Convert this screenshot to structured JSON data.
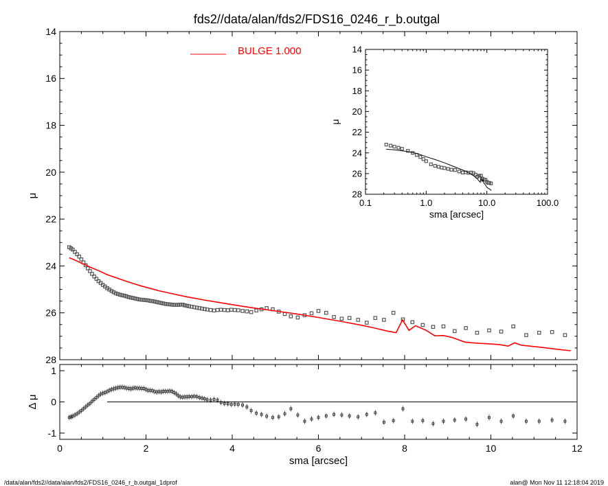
{
  "title": "fds2//data/alan/fds2/FDS16_0246_r_b.outgal",
  "footer": {
    "left": "/data/alan/fds2//data/alan/fds2/FDS16_0246_r_b.outgal_1dprof",
    "right": "alan@  Mon Nov 11 12:18:04 2019"
  },
  "colors": {
    "model": "#ff0000",
    "data": "#555555",
    "axis": "#000000"
  },
  "chart_data": [
    {
      "id": "main",
      "type": "scatter",
      "xlabel": "",
      "ylabel": "μ",
      "xlim": [
        0,
        12
      ],
      "ylim": [
        28,
        14
      ],
      "yreverse": true,
      "yticks": [
        14,
        16,
        18,
        20,
        22,
        24,
        26,
        28
      ],
      "ytick_labels": [
        "14",
        "16",
        "18",
        "20",
        "22",
        "24",
        "26",
        "28"
      ],
      "legend": {
        "entry": "BULGE  1.000",
        "placement": "top"
      },
      "series": [
        {
          "kind": "data-points",
          "x": [
            0.22,
            0.26,
            0.3,
            0.35,
            0.4,
            0.45,
            0.5,
            0.55,
            0.6,
            0.65,
            0.7,
            0.75,
            0.8,
            0.85,
            0.9,
            0.95,
            1.0,
            1.05,
            1.1,
            1.15,
            1.2,
            1.25,
            1.3,
            1.35,
            1.4,
            1.45,
            1.5,
            1.55,
            1.6,
            1.65,
            1.7,
            1.75,
            1.8,
            1.85,
            1.9,
            1.95,
            2.0,
            2.05,
            2.1,
            2.15,
            2.2,
            2.25,
            2.3,
            2.35,
            2.4,
            2.45,
            2.5,
            2.55,
            2.6,
            2.65,
            2.7,
            2.75,
            2.8,
            2.85,
            2.9,
            2.95,
            3.0,
            3.06,
            3.12,
            3.18,
            3.24,
            3.3,
            3.36,
            3.42,
            3.5,
            3.58,
            3.66,
            3.74,
            3.82,
            3.9,
            3.98,
            4.06,
            4.14,
            4.24,
            4.34,
            4.44,
            4.56,
            4.68,
            4.8,
            4.94,
            5.08,
            5.22,
            5.36,
            5.52,
            5.68,
            5.84,
            6.0,
            6.18,
            6.36,
            6.54,
            6.72,
            6.92,
            7.12,
            7.32,
            7.52,
            7.74,
            7.96,
            8.18,
            8.42,
            8.66,
            8.9,
            9.16,
            9.42,
            9.68,
            9.96,
            10.24,
            10.52,
            10.82,
            11.12,
            11.42,
            11.72
          ],
          "y": [
            23.2,
            23.25,
            23.3,
            23.4,
            23.5,
            23.6,
            23.72,
            23.85,
            23.97,
            24.1,
            24.22,
            24.34,
            24.45,
            24.55,
            24.65,
            24.73,
            24.81,
            24.88,
            24.95,
            25.01,
            25.07,
            25.12,
            25.17,
            25.2,
            25.23,
            25.25,
            25.27,
            25.3,
            25.33,
            25.35,
            25.37,
            25.39,
            25.41,
            25.43,
            25.44,
            25.45,
            25.46,
            25.47,
            25.49,
            25.5,
            25.52,
            25.54,
            25.56,
            25.58,
            25.6,
            25.62,
            25.63,
            25.64,
            25.65,
            25.66,
            25.66,
            25.66,
            25.65,
            25.65,
            25.68,
            25.7,
            25.72,
            25.74,
            25.76,
            25.78,
            25.8,
            25.82,
            25.84,
            25.86,
            25.88,
            25.9,
            25.88,
            25.87,
            25.88,
            25.89,
            25.87,
            25.88,
            25.89,
            25.92,
            25.94,
            25.97,
            25.9,
            25.85,
            25.8,
            25.85,
            25.95,
            26.05,
            26.15,
            26.2,
            26.1,
            26.02,
            25.92,
            26.0,
            26.18,
            26.25,
            26.22,
            26.3,
            26.42,
            26.22,
            26.3,
            26.0,
            26.28,
            26.4,
            26.52,
            26.6,
            26.58,
            26.78,
            26.65,
            26.85,
            26.75,
            26.8,
            26.58,
            26.95,
            26.85,
            26.82,
            26.95
          ],
          "marker": "square"
        },
        {
          "kind": "model",
          "name": "BULGE  1.000",
          "x": [
            0.22,
            0.35,
            0.5,
            0.7,
            0.9,
            1.1,
            1.3,
            1.5,
            1.7,
            1.9,
            2.1,
            2.3,
            2.5,
            2.7,
            2.9,
            3.1,
            3.4,
            3.7,
            4.0,
            4.3,
            4.6,
            5.0,
            5.5,
            6.0,
            6.5,
            7.0,
            7.3,
            7.6,
            7.8,
            7.95,
            8.1,
            8.25,
            8.5,
            8.7,
            8.9,
            9.1,
            9.4,
            9.7,
            10.0,
            10.2,
            10.4,
            10.55,
            10.7,
            10.9,
            11.2,
            11.5,
            11.85
          ],
          "y": [
            23.65,
            23.75,
            23.88,
            24.05,
            24.2,
            24.37,
            24.5,
            24.63,
            24.75,
            24.86,
            24.96,
            25.06,
            25.14,
            25.22,
            25.3,
            25.37,
            25.47,
            25.56,
            25.65,
            25.74,
            25.82,
            25.92,
            26.05,
            26.2,
            26.36,
            26.53,
            26.65,
            26.78,
            26.85,
            26.3,
            26.75,
            26.55,
            26.75,
            26.98,
            26.97,
            27.05,
            27.25,
            27.3,
            27.33,
            27.36,
            27.42,
            27.28,
            27.38,
            27.42,
            27.48,
            27.55,
            27.62
          ]
        }
      ]
    },
    {
      "id": "residual",
      "type": "scatter",
      "xlabel": "sma [arcsec]",
      "ylabel": "Δ μ",
      "xlim": [
        0,
        12
      ],
      "ylim": [
        -1.2,
        1.2
      ],
      "xticks": [
        0,
        2,
        4,
        6,
        8,
        10,
        12
      ],
      "xtick_labels": [
        "0",
        "2",
        "4",
        "6",
        "8",
        "10",
        "12"
      ],
      "yticks": [
        1,
        0,
        -1
      ],
      "ytick_labels": [
        "1",
        "0",
        "-1"
      ],
      "zero_line_from": 1.1,
      "series": [
        {
          "kind": "residual",
          "x": [
            0.22,
            0.26,
            0.3,
            0.35,
            0.4,
            0.45,
            0.5,
            0.55,
            0.6,
            0.65,
            0.7,
            0.75,
            0.8,
            0.85,
            0.9,
            0.95,
            1.0,
            1.05,
            1.1,
            1.15,
            1.2,
            1.25,
            1.3,
            1.35,
            1.4,
            1.45,
            1.5,
            1.55,
            1.6,
            1.65,
            1.7,
            1.75,
            1.8,
            1.85,
            1.9,
            1.95,
            2.0,
            2.05,
            2.1,
            2.15,
            2.2,
            2.25,
            2.3,
            2.35,
            2.4,
            2.45,
            2.5,
            2.55,
            2.6,
            2.65,
            2.7,
            2.75,
            2.8,
            2.85,
            2.9,
            2.95,
            3.0,
            3.06,
            3.12,
            3.18,
            3.24,
            3.3,
            3.36,
            3.42,
            3.5,
            3.58,
            3.66,
            3.74,
            3.82,
            3.9,
            3.98,
            4.06,
            4.14,
            4.24,
            4.34,
            4.44,
            4.56,
            4.68,
            4.8,
            4.94,
            5.08,
            5.22,
            5.36,
            5.52,
            5.68,
            5.84,
            6.0,
            6.18,
            6.36,
            6.54,
            6.72,
            6.92,
            7.12,
            7.32,
            7.52,
            7.74,
            7.96,
            8.18,
            8.42,
            8.66,
            8.9,
            9.16,
            9.42,
            9.68,
            9.96,
            10.24,
            10.52,
            10.82,
            11.12,
            11.42,
            11.72
          ],
          "y": [
            -0.5,
            -0.48,
            -0.46,
            -0.42,
            -0.38,
            -0.33,
            -0.28,
            -0.22,
            -0.16,
            -0.1,
            -0.05,
            0.02,
            0.08,
            0.14,
            0.2,
            0.25,
            0.28,
            0.3,
            0.33,
            0.37,
            0.4,
            0.42,
            0.44,
            0.46,
            0.47,
            0.47,
            0.46,
            0.44,
            0.43,
            0.42,
            0.44,
            0.45,
            0.44,
            0.44,
            0.43,
            0.43,
            0.4,
            0.37,
            0.37,
            0.36,
            0.33,
            0.32,
            0.33,
            0.32,
            0.34,
            0.34,
            0.34,
            0.35,
            0.34,
            0.3,
            0.26,
            0.2,
            0.16,
            0.15,
            0.16,
            0.16,
            0.17,
            0.17,
            0.18,
            0.17,
            0.14,
            0.12,
            0.1,
            0.07,
            0.06,
            0.08,
            0.06,
            -0.02,
            -0.05,
            -0.06,
            -0.08,
            -0.07,
            -0.08,
            -0.1,
            -0.16,
            -0.28,
            -0.36,
            -0.4,
            -0.46,
            -0.5,
            -0.48,
            -0.38,
            -0.22,
            -0.42,
            -0.62,
            -0.55,
            -0.5,
            -0.45,
            -0.4,
            -0.42,
            -0.45,
            -0.48,
            -0.4,
            -0.35,
            -0.65,
            -0.6,
            -0.22,
            -0.62,
            -0.6,
            -0.7,
            -0.62,
            -0.58,
            -0.55,
            -0.72,
            -0.5,
            -0.62,
            -0.45,
            -0.62,
            -0.62,
            -0.58,
            -0.62
          ]
        }
      ]
    },
    {
      "id": "inset",
      "type": "scatter",
      "xlabel": "sma [arcsec]",
      "ylabel": "μ",
      "xscale": "log",
      "xlim": [
        0.1,
        100
      ],
      "ylim": [
        28,
        14
      ],
      "yreverse": true,
      "xticks": [
        0.1,
        1,
        10,
        100
      ],
      "xtick_labels": [
        "0.1",
        "1.0",
        "10.0",
        "100.0"
      ],
      "yticks": [
        14,
        16,
        18,
        20,
        22,
        24,
        26,
        28
      ],
      "ytick_labels": [
        "14",
        "16",
        "18",
        "20",
        "22",
        "24",
        "26",
        "28"
      ],
      "series": [
        {
          "kind": "data-points",
          "x": [
            0.22,
            0.26,
            0.3,
            0.35,
            0.4,
            0.5,
            0.6,
            0.7,
            0.8,
            0.9,
            1.0,
            1.2,
            1.4,
            1.6,
            1.8,
            2.0,
            2.3,
            2.6,
            3.0,
            3.5,
            4.0,
            4.5,
            5.0,
            5.5,
            6.0,
            6.5,
            7.0,
            7.5,
            8.0,
            8.5,
            9.0,
            9.5,
            10.0,
            10.5,
            11.0,
            11.7
          ],
          "y": [
            23.2,
            23.3,
            23.4,
            23.5,
            23.6,
            23.8,
            24.0,
            24.2,
            24.4,
            24.6,
            24.8,
            25.1,
            25.25,
            25.35,
            25.42,
            25.47,
            25.55,
            25.63,
            25.66,
            25.8,
            25.9,
            25.88,
            25.92,
            25.9,
            25.95,
            26.1,
            26.3,
            26.2,
            26.2,
            26.5,
            26.6,
            26.6,
            26.8,
            26.9,
            26.9,
            26.95
          ],
          "marker": "square"
        },
        {
          "kind": "model",
          "x": [
            0.22,
            0.3,
            0.5,
            0.7,
            1.0,
            1.5,
            2.0,
            3.0,
            4.0,
            5.0,
            6.0,
            7.0,
            7.8,
            8.0,
            8.3,
            8.6,
            9.0,
            9.5,
            10.0,
            10.5,
            11.0,
            11.85
          ],
          "y": [
            23.65,
            23.7,
            23.88,
            24.05,
            24.37,
            24.7,
            24.96,
            25.37,
            25.65,
            25.92,
            26.2,
            26.53,
            26.85,
            26.3,
            26.75,
            26.55,
            26.97,
            27.1,
            27.33,
            27.42,
            27.48,
            27.62
          ]
        }
      ]
    }
  ]
}
